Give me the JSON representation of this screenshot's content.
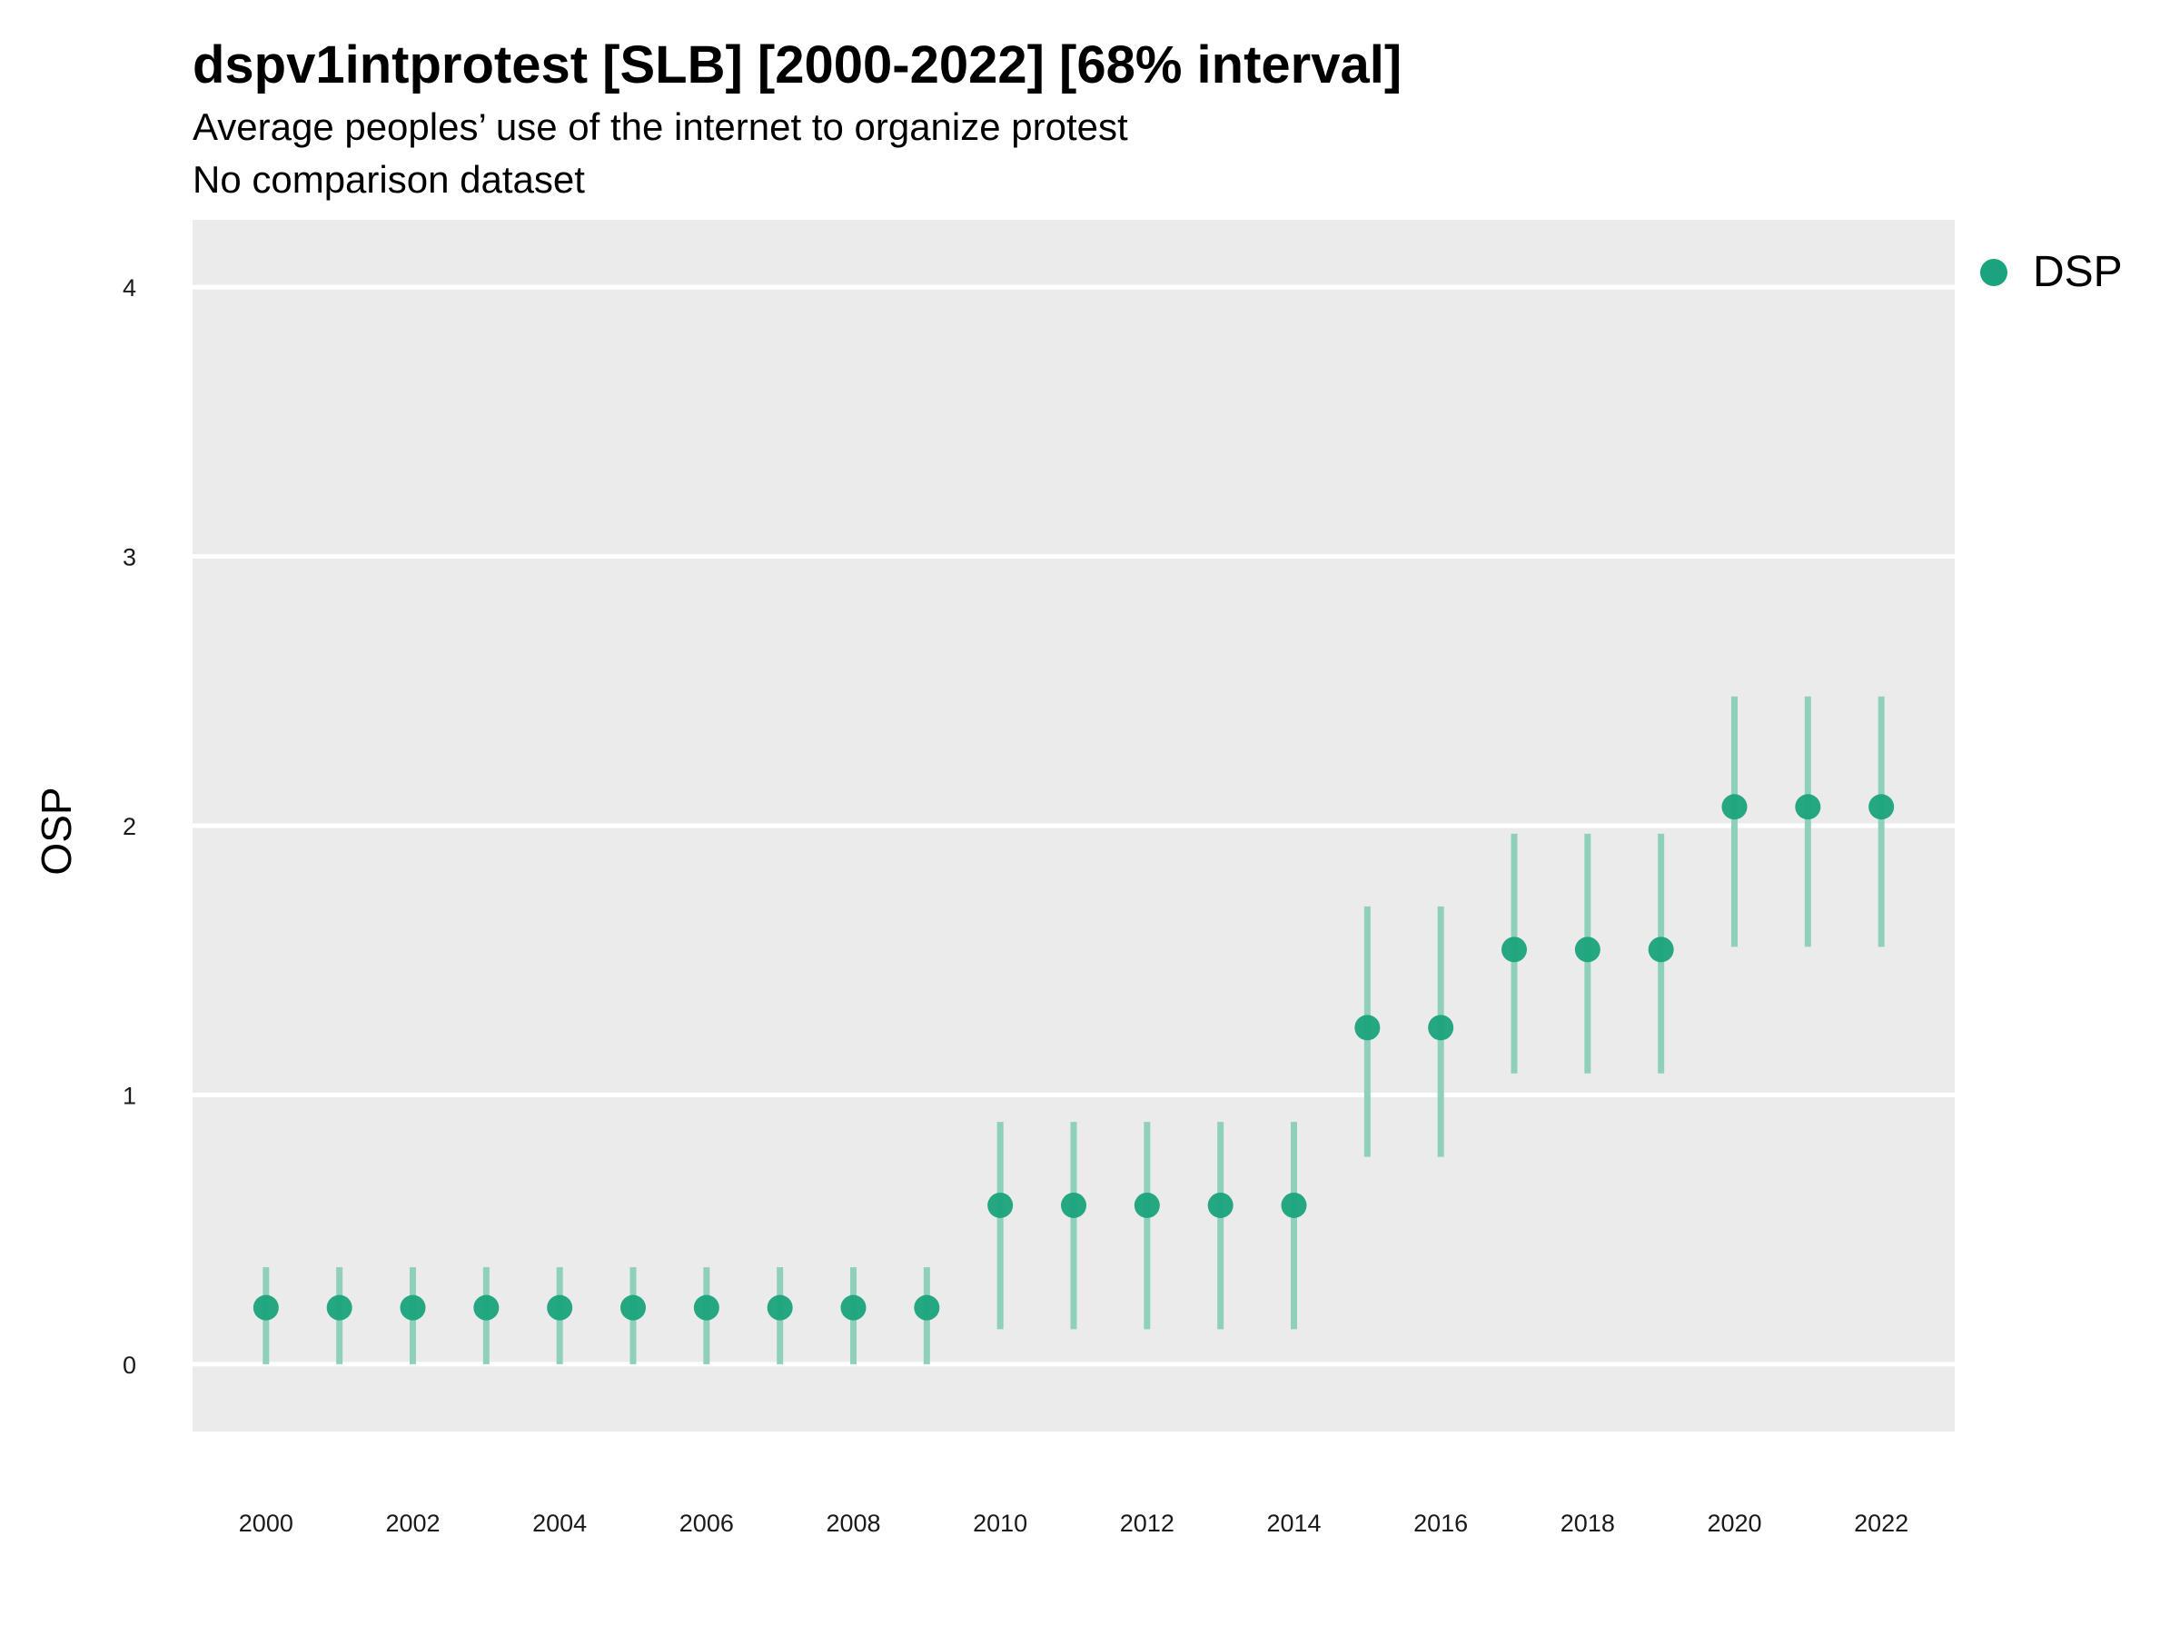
{
  "title": "dspv1intprotest [SLB] [2000-2022] [68% interval]",
  "subtitle_line1": "Average peoples’ use of the internet to organize protest",
  "subtitle_line2": "No comparison dataset",
  "colors": {
    "point": "#1aa37c",
    "interval": "#8fd0bb",
    "panel": "#ebebeb",
    "grid": "#ffffff"
  },
  "chart_data": {
    "type": "scatter",
    "title": "dspv1intprotest [SLB] [2000-2022] [68% interval]",
    "subtitle": "Average peoples’ use of the internet to organize protest / No comparison dataset",
    "xlabel": "",
    "ylabel": "OSP",
    "xlim": [
      1999,
      2023
    ],
    "ylim": [
      -0.25,
      4.25
    ],
    "x_ticks": [
      2000,
      2002,
      2004,
      2006,
      2008,
      2010,
      2012,
      2014,
      2016,
      2018,
      2020,
      2022
    ],
    "y_ticks": [
      0,
      1,
      2,
      3,
      4
    ],
    "grid": true,
    "legend_position": "right",
    "series": [
      {
        "name": "DSP",
        "x": [
          2000,
          2001,
          2002,
          2003,
          2004,
          2005,
          2006,
          2007,
          2008,
          2009,
          2010,
          2011,
          2012,
          2013,
          2014,
          2015,
          2016,
          2017,
          2018,
          2019,
          2020,
          2021,
          2022
        ],
        "y": [
          0.21,
          0.21,
          0.21,
          0.21,
          0.21,
          0.21,
          0.21,
          0.21,
          0.21,
          0.21,
          0.59,
          0.59,
          0.59,
          0.59,
          0.59,
          1.25,
          1.25,
          1.54,
          1.54,
          1.54,
          2.07,
          2.07,
          2.07
        ],
        "lower": [
          0.0,
          0.0,
          0.0,
          0.0,
          0.0,
          0.0,
          0.0,
          0.0,
          0.0,
          0.0,
          0.13,
          0.13,
          0.13,
          0.13,
          0.13,
          0.77,
          0.77,
          1.08,
          1.08,
          1.08,
          1.55,
          1.55,
          1.55
        ],
        "upper": [
          0.36,
          0.36,
          0.36,
          0.36,
          0.36,
          0.36,
          0.36,
          0.36,
          0.36,
          0.36,
          0.9,
          0.9,
          0.9,
          0.9,
          0.9,
          1.7,
          1.7,
          1.97,
          1.97,
          1.97,
          2.48,
          2.48,
          2.48
        ]
      }
    ]
  }
}
